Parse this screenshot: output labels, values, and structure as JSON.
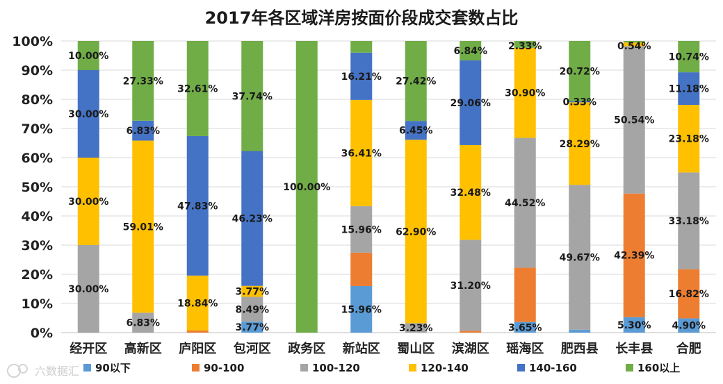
{
  "chart_data": {
    "type": "bar",
    "stacked": true,
    "title": "2017年各区域洋房按面价段成交套数占比",
    "categories": [
      "经开区",
      "高新区",
      "庐阳区",
      "包河区",
      "政务区",
      "新站区",
      "蜀山区",
      "滨湖区",
      "瑶海区",
      "肥西县",
      "长丰县",
      "合肥"
    ],
    "ylim": [
      0,
      100
    ],
    "yticks": [
      "0%",
      "10%",
      "20%",
      "30%",
      "40%",
      "50%",
      "60%",
      "70%",
      "80%",
      "90%",
      "100%"
    ],
    "legend_position": "bottom",
    "series": [
      {
        "name": "90以下",
        "color": "#5B9BD5",
        "values": [
          0,
          0,
          0,
          3.77,
          0,
          15.96,
          0,
          0,
          3.65,
          1.0,
          5.3,
          4.9
        ]
      },
      {
        "name": "90-100",
        "color": "#ED7D31",
        "values": [
          0,
          0,
          0.72,
          0,
          0,
          11.46,
          0,
          0.62,
          18.6,
          0,
          42.39,
          16.82
        ]
      },
      {
        "name": "100-120",
        "color": "#A5A5A5",
        "values": [
          30.0,
          6.83,
          0,
          8.49,
          0,
          15.96,
          3.23,
          31.2,
          44.52,
          49.67,
          50.54,
          33.18
        ]
      },
      {
        "name": "120-140",
        "color": "#FFC000",
        "values": [
          30.0,
          59.01,
          18.84,
          3.77,
          0,
          36.41,
          62.9,
          32.48,
          30.9,
          28.29,
          1.23,
          23.18
        ]
      },
      {
        "name": "140-160",
        "color": "#4472C4",
        "values": [
          30.0,
          6.83,
          47.83,
          46.23,
          0,
          16.21,
          6.45,
          29.06,
          0,
          0.33,
          0,
          11.18
        ]
      },
      {
        "name": "160以上",
        "color": "#70AD47",
        "values": [
          10.0,
          27.33,
          32.61,
          37.74,
          100.0,
          3.99,
          27.42,
          6.84,
          2.33,
          20.72,
          0.54,
          10.74
        ]
      }
    ],
    "data_labels": [
      [
        {
          "series": 2,
          "text": "30.00%"
        },
        {
          "series": 3,
          "text": "30.00%"
        },
        {
          "series": 4,
          "text": "30.00%"
        },
        {
          "series": 5,
          "text": "10.00%"
        }
      ],
      [
        {
          "series": 2,
          "text": "6.83%"
        },
        {
          "series": 3,
          "text": "59.01%"
        },
        {
          "series": 4,
          "text": "6.83%"
        },
        {
          "series": 5,
          "text": "27.33%"
        }
      ],
      [
        {
          "series": 3,
          "text": "18.84%"
        },
        {
          "series": 4,
          "text": "47.83%"
        },
        {
          "series": 5,
          "text": "32.61%"
        }
      ],
      [
        {
          "series": 0,
          "text": "3.77%"
        },
        {
          "series": 2,
          "text": "8.49%"
        },
        {
          "series": 3,
          "text": "3.77%"
        },
        {
          "series": 4,
          "text": "46.23%"
        },
        {
          "series": 5,
          "text": "37.74%"
        }
      ],
      [
        {
          "series": 5,
          "text": "100.00%"
        }
      ],
      [
        {
          "series": 0,
          "text": "15.96%"
        },
        {
          "series": 2,
          "text": "15.96%"
        },
        {
          "series": 3,
          "text": "36.41%"
        },
        {
          "series": 4,
          "text": "16.21%"
        }
      ],
      [
        {
          "series": 2,
          "text": "3.23%"
        },
        {
          "series": 3,
          "text": "62.90%"
        },
        {
          "series": 4,
          "text": "6.45%"
        },
        {
          "series": 5,
          "text": "27.42%"
        }
      ],
      [
        {
          "series": 2,
          "text": "31.20%"
        },
        {
          "series": 3,
          "text": "32.48%"
        },
        {
          "series": 4,
          "text": "29.06%"
        },
        {
          "series": 5,
          "text": "6.84%"
        }
      ],
      [
        {
          "series": 0,
          "text": "3.65%"
        },
        {
          "series": 2,
          "text": "44.52%"
        },
        {
          "series": 3,
          "text": "30.90%"
        },
        {
          "series": 5,
          "text": "2.33%"
        }
      ],
      [
        {
          "series": 2,
          "text": "49.67%"
        },
        {
          "series": 3,
          "text": "28.29%"
        },
        {
          "series": 4,
          "text": "0.33%"
        },
        {
          "series": 5,
          "text": "20.72%"
        }
      ],
      [
        {
          "series": 0,
          "text": "5.30%"
        },
        {
          "series": 1,
          "text": "42.39%"
        },
        {
          "series": 2,
          "text": "50.54%"
        },
        {
          "series": 5,
          "text": "0.54%"
        }
      ],
      [
        {
          "series": 0,
          "text": "4.90%"
        },
        {
          "series": 1,
          "text": "16.82%"
        },
        {
          "series": 2,
          "text": "33.18%"
        },
        {
          "series": 3,
          "text": "23.18%"
        },
        {
          "series": 4,
          "text": "11.18%"
        },
        {
          "series": 5,
          "text": "10.74%"
        }
      ]
    ]
  },
  "watermark": {
    "text": "六数据汇",
    "icon": "watermark-logo-icon"
  }
}
